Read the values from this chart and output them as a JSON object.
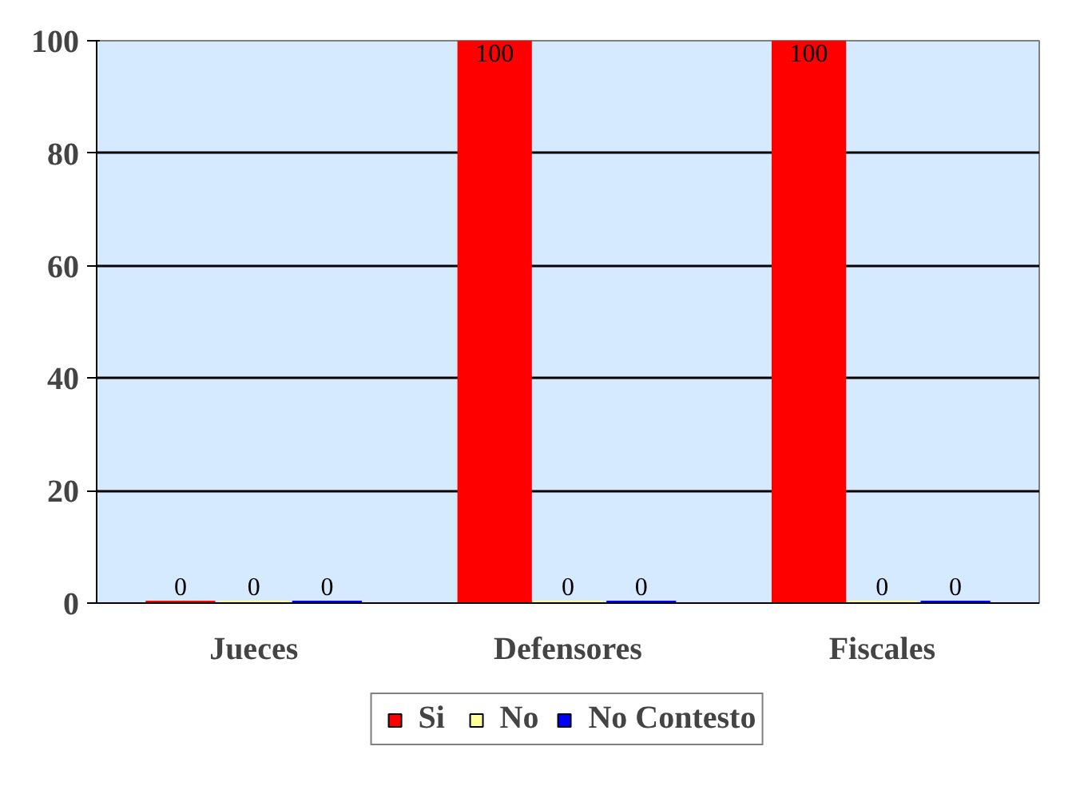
{
  "chart_data": {
    "type": "bar",
    "categories": [
      "Jueces",
      "Defensores",
      "Fiscales"
    ],
    "series": [
      {
        "name": "Si",
        "color": "#ff0000",
        "values": [
          0,
          100,
          100
        ]
      },
      {
        "name": "No",
        "color": "#ffff99",
        "values": [
          0,
          0,
          0
        ]
      },
      {
        "name": "No Contesto",
        "color": "#0000ff",
        "values": [
          0,
          0,
          0
        ]
      }
    ],
    "ylim": [
      0,
      100
    ],
    "yticks": [
      0,
      20,
      40,
      60,
      80,
      100
    ],
    "grid": "y",
    "legend": "bottom",
    "data_labels": true
  }
}
